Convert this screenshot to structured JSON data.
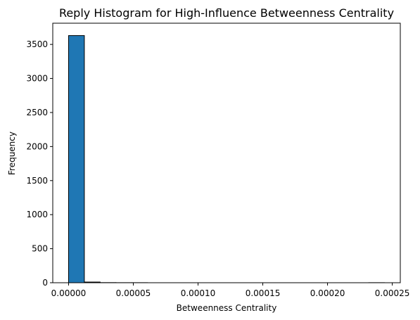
{
  "chart_data": {
    "type": "bar",
    "title": "Reply Histogram for High-Influence Betweenness Centrality",
    "xlabel": "Betweenness Centrality",
    "ylabel": "Frequency",
    "bin_edges": [
      0,
      1.22e-05,
      2.44e-05,
      3.66e-05,
      4.88e-05,
      6.1e-05,
      7.32e-05,
      8.54e-05,
      9.76e-05,
      0.0001098,
      0.000122,
      0.0001342,
      0.0001464,
      0.0001586,
      0.0001708,
      0.000183,
      0.0001952,
      0.0002074,
      0.0002196,
      0.0002318,
      0.000244
    ],
    "values": [
      3630,
      10,
      2,
      1,
      1,
      0,
      0,
      0,
      0,
      0,
      0,
      0,
      0,
      0,
      0,
      0,
      0,
      0,
      0,
      1
    ],
    "xlim": [
      -1.22e-05,
      0.0002562
    ],
    "ylim": [
      0,
      3811.5
    ],
    "xticks": [
      0,
      5e-05,
      0.0001,
      0.00015,
      0.0002,
      0.00025
    ],
    "xtick_labels": [
      "0.00000",
      "0.00005",
      "0.00010",
      "0.00015",
      "0.00020",
      "0.00025"
    ],
    "yticks": [
      0,
      500,
      1000,
      1500,
      2000,
      2500,
      3000,
      3500
    ],
    "ytick_labels": [
      "0",
      "500",
      "1000",
      "1500",
      "2000",
      "2500",
      "3000",
      "3500"
    ],
    "bar_color": "#1f77b4",
    "edge_color": "#000000",
    "grid": false
  }
}
